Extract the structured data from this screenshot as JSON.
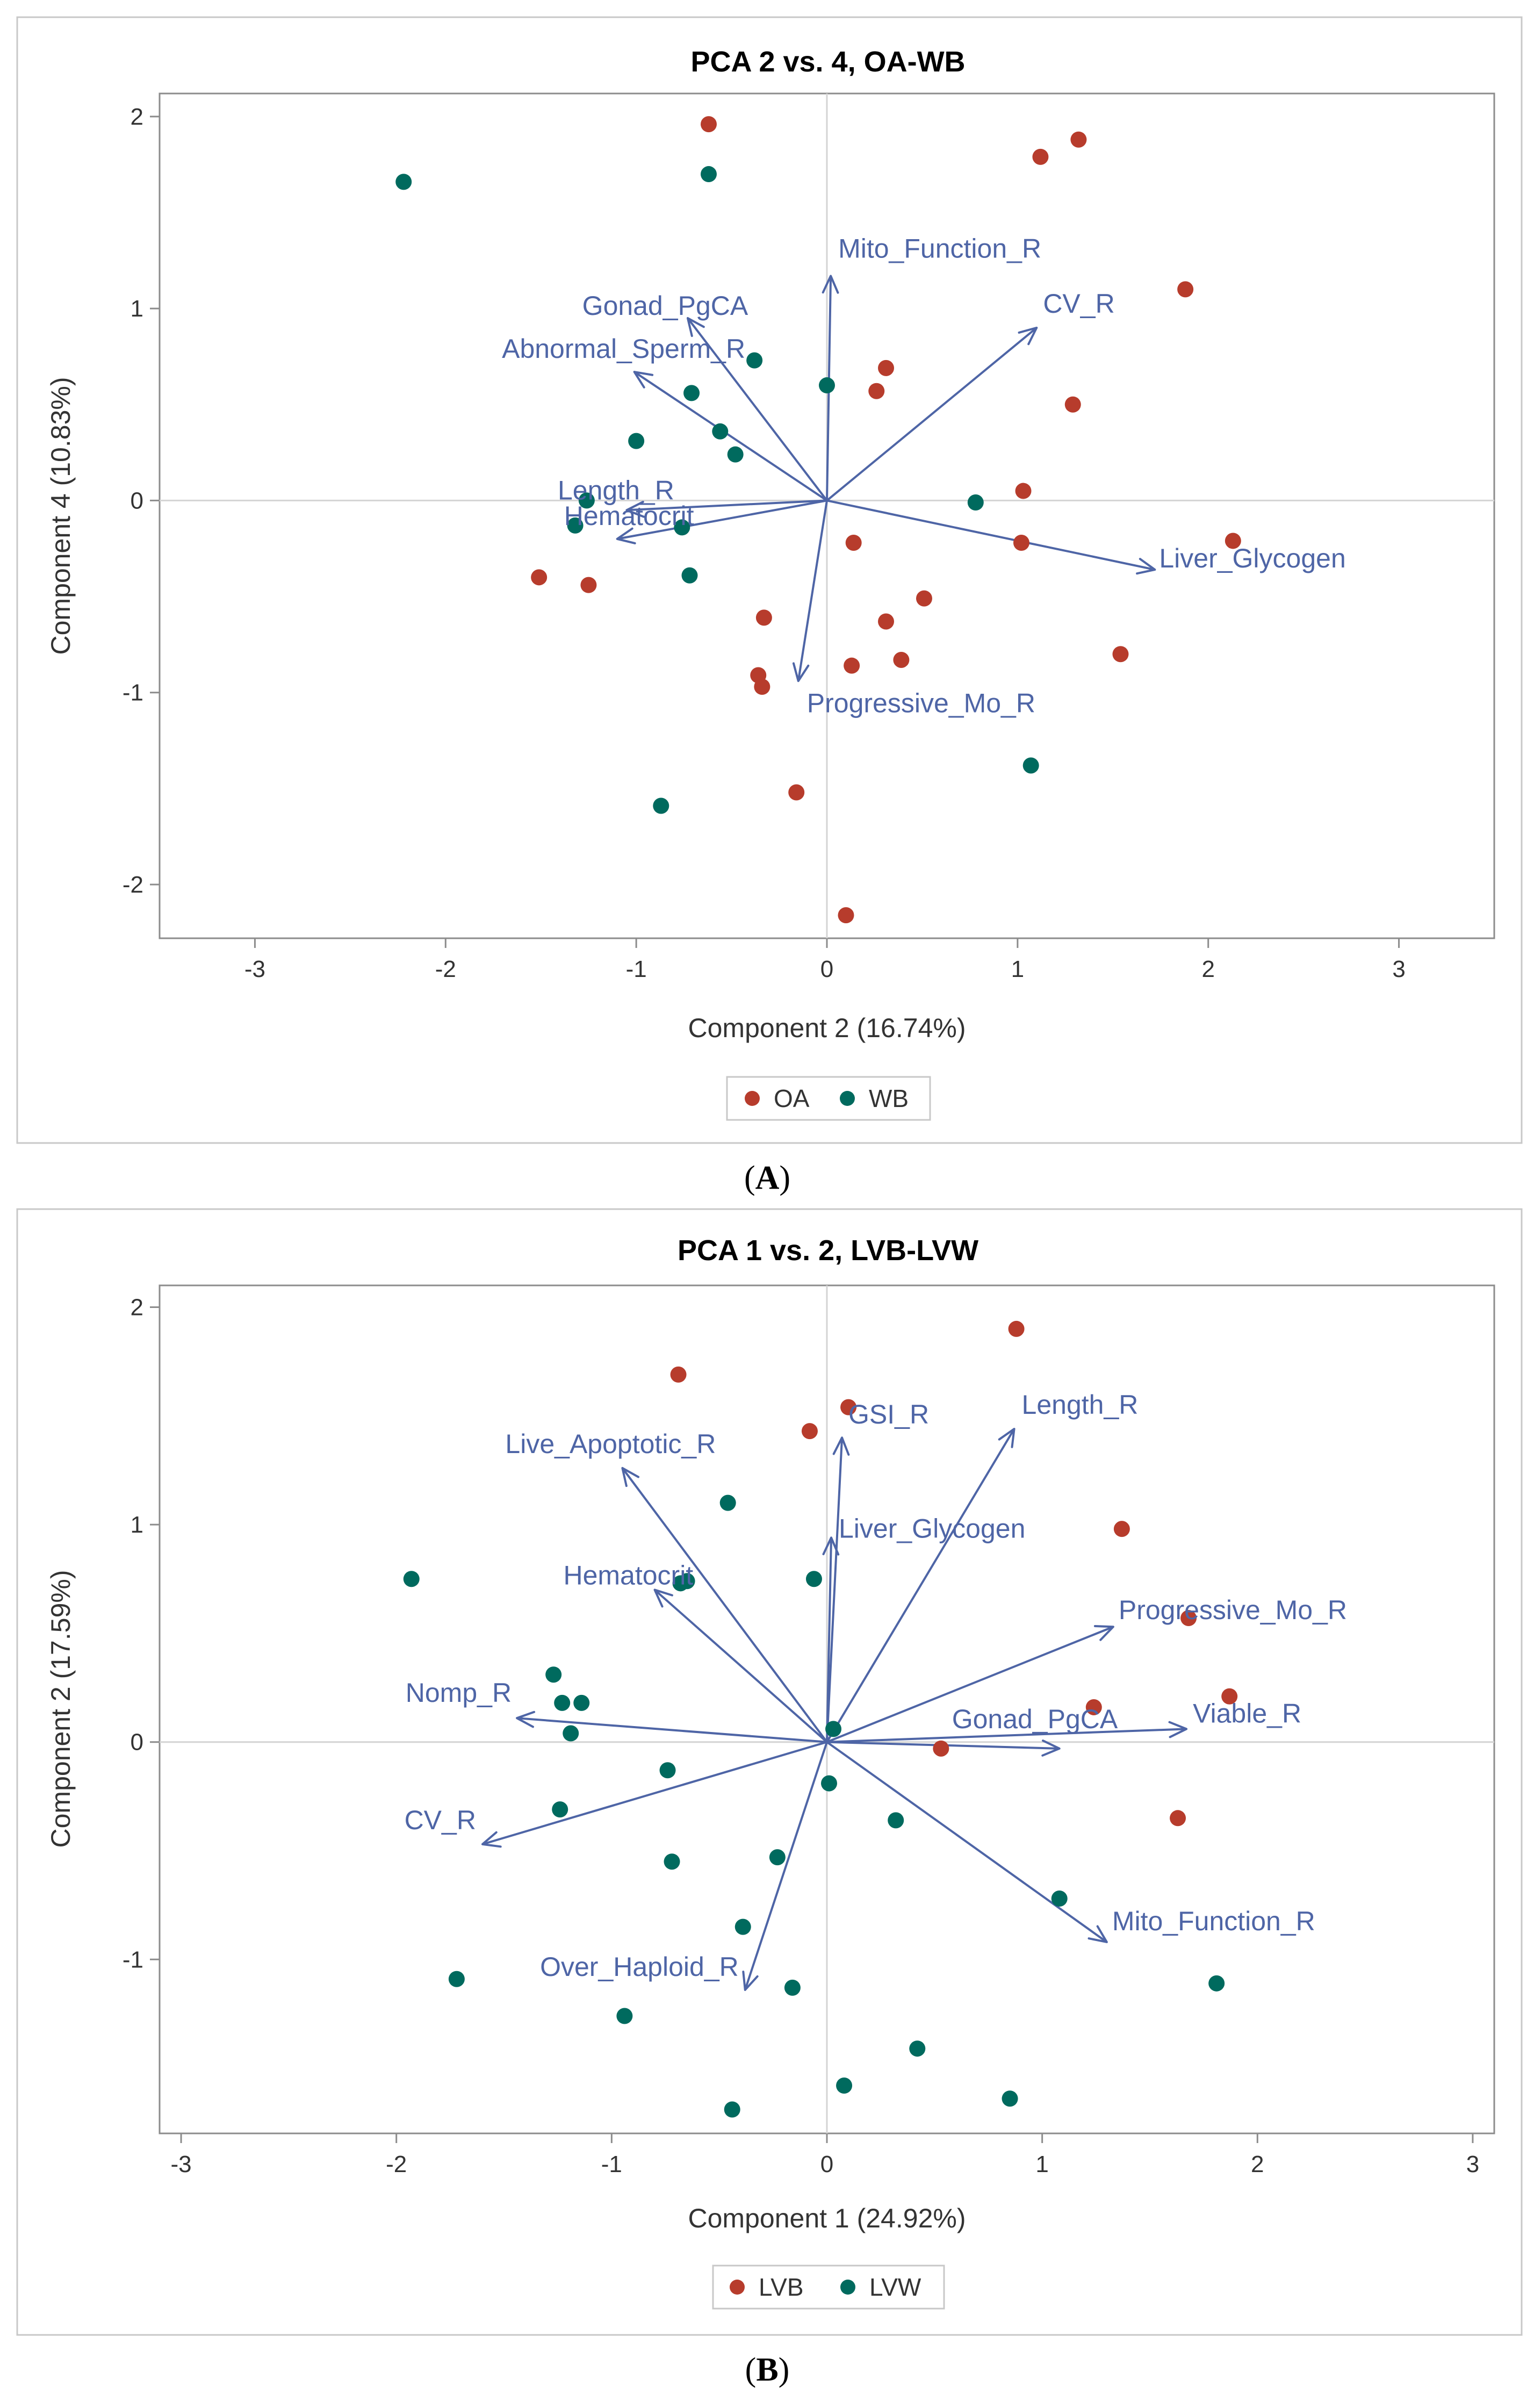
{
  "colors": {
    "red": "#b73c2c",
    "teal": "#006a5e",
    "vector": "#4e65a6"
  },
  "chart_data": [
    {
      "type": "scatter",
      "title": "PCA 2 vs. 4, OA-WB",
      "xlabel": "Component 2 (16.74%)",
      "ylabel": "Component 4 (10.83%)",
      "xlim": [
        -3.5,
        3.5
      ],
      "ylim": [
        -2.28,
        2.12
      ],
      "xticks": [
        -3,
        -2,
        -1,
        0,
        1,
        2,
        3
      ],
      "yticks": [
        -2,
        -1,
        0,
        1,
        2
      ],
      "caption": "A",
      "series": [
        {
          "name": "OA",
          "color": "#b73c2c",
          "points": [
            [
              -0.62,
              1.96
            ],
            [
              1.12,
              1.79
            ],
            [
              1.32,
              1.88
            ],
            [
              1.88,
              1.1
            ],
            [
              0.31,
              0.69
            ],
            [
              0.26,
              0.57
            ],
            [
              1.29,
              0.5
            ],
            [
              1.03,
              0.05
            ],
            [
              1.02,
              -0.22
            ],
            [
              2.13,
              -0.21
            ],
            [
              0.14,
              -0.22
            ],
            [
              -1.51,
              -0.4
            ],
            [
              -1.25,
              -0.44
            ],
            [
              0.51,
              -0.51
            ],
            [
              0.31,
              -0.63
            ],
            [
              -0.33,
              -0.61
            ],
            [
              1.54,
              -0.8
            ],
            [
              0.39,
              -0.83
            ],
            [
              0.13,
              -0.86
            ],
            [
              -0.36,
              -0.91
            ],
            [
              -0.34,
              -0.97
            ],
            [
              -0.16,
              -1.52
            ],
            [
              0.1,
              -2.16
            ]
          ]
        },
        {
          "name": "WB",
          "color": "#006a5e",
          "points": [
            [
              -2.22,
              1.66
            ],
            [
              -0.62,
              1.7
            ],
            [
              -0.38,
              0.73
            ],
            [
              0.0,
              0.6
            ],
            [
              -0.71,
              0.56
            ],
            [
              -0.56,
              0.36
            ],
            [
              -1.0,
              0.31
            ],
            [
              -0.48,
              0.24
            ],
            [
              -1.26,
              0.0
            ],
            [
              0.78,
              -0.01
            ],
            [
              -1.32,
              -0.13
            ],
            [
              -0.76,
              -0.14
            ],
            [
              -0.72,
              -0.39
            ],
            [
              1.07,
              -1.38
            ],
            [
              -0.87,
              -1.59
            ]
          ]
        }
      ],
      "vectors": [
        {
          "label": "Mito_Function_R",
          "end": [
            0.02,
            1.17
          ]
        },
        {
          "label": "CV_R",
          "end": [
            1.1,
            0.9
          ]
        },
        {
          "label": "Gonad_PgCA",
          "end": [
            -0.73,
            0.95
          ]
        },
        {
          "label": "Abnormal_Sperm_R",
          "end": [
            -1.01,
            0.67
          ]
        },
        {
          "label": "Length_R",
          "end": [
            -1.05,
            -0.05
          ]
        },
        {
          "label": "Hematocrit",
          "end": [
            -1.1,
            -0.2
          ]
        },
        {
          "label": "Liver_Glycogen",
          "end": [
            1.72,
            -0.36
          ]
        },
        {
          "label": "Progressive_Mo_R",
          "end": [
            -0.15,
            -0.94
          ]
        }
      ],
      "legend": [
        "OA",
        "WB"
      ]
    },
    {
      "type": "scatter",
      "title": "PCA 1 vs. 2, LVB-LVW",
      "xlabel": "Component 1 (24.92%)",
      "ylabel": "Component 2 (17.59%)",
      "xlim": [
        -3.1,
        3.1
      ],
      "ylim": [
        -1.8,
        2.1
      ],
      "xticks": [
        -3,
        -2,
        -1,
        0,
        1,
        2,
        3
      ],
      "yticks": [
        -1,
        0,
        1,
        2
      ],
      "caption": "B",
      "series": [
        {
          "name": "LVB",
          "color": "#b73c2c",
          "points": [
            [
              0.88,
              1.9
            ],
            [
              -0.69,
              1.69
            ],
            [
              0.1,
              1.54
            ],
            [
              -0.08,
              1.43
            ],
            [
              1.37,
              0.98
            ],
            [
              1.68,
              0.57
            ],
            [
              1.24,
              0.16
            ],
            [
              1.87,
              0.21
            ],
            [
              0.53,
              -0.03
            ],
            [
              1.63,
              -0.35
            ]
          ]
        },
        {
          "name": "LVW",
          "color": "#006a5e",
          "points": [
            [
              -0.46,
              1.1
            ],
            [
              -1.93,
              0.75
            ],
            [
              -0.65,
              0.74
            ],
            [
              -0.68,
              0.73
            ],
            [
              -0.06,
              0.75
            ],
            [
              -1.27,
              0.31
            ],
            [
              -1.23,
              0.18
            ],
            [
              -1.14,
              0.18
            ],
            [
              -1.19,
              0.04
            ],
            [
              0.03,
              0.06
            ],
            [
              -0.74,
              -0.13
            ],
            [
              0.01,
              -0.19
            ],
            [
              0.32,
              -0.36
            ],
            [
              -1.24,
              -0.31
            ],
            [
              -0.72,
              -0.55
            ],
            [
              -0.23,
              -0.53
            ],
            [
              1.08,
              -0.72
            ],
            [
              -0.39,
              -0.85
            ],
            [
              -1.72,
              -1.09
            ],
            [
              -0.16,
              -1.13
            ],
            [
              1.81,
              -1.11
            ],
            [
              -0.94,
              -1.26
            ],
            [
              0.42,
              -1.41
            ],
            [
              0.08,
              -1.58
            ],
            [
              0.85,
              -1.64
            ],
            [
              -0.44,
              -1.69
            ]
          ]
        }
      ],
      "vectors": [
        {
          "label": "GSI_R",
          "end": [
            0.07,
            1.4
          ]
        },
        {
          "label": "Length_R",
          "end": [
            0.87,
            1.44
          ]
        },
        {
          "label": "Live_Apoptotic_R",
          "end": [
            -0.95,
            1.26
          ]
        },
        {
          "label": "Liver_Glycogen",
          "end": [
            0.02,
            0.94
          ]
        },
        {
          "label": "Hematocrit",
          "end": [
            -0.8,
            0.7
          ]
        },
        {
          "label": "Progressive_Mo_R",
          "end": [
            1.33,
            0.53
          ]
        },
        {
          "label": "Nomp_R",
          "end": [
            -1.44,
            0.11
          ]
        },
        {
          "label": "Gonad_PgCA",
          "end": [
            1.08,
            -0.03
          ]
        },
        {
          "label": "Viable_R",
          "end": [
            1.67,
            0.06
          ]
        },
        {
          "label": "CV_R",
          "end": [
            -1.6,
            -0.47
          ]
        },
        {
          "label": "Mito_Function_R",
          "end": [
            1.3,
            -0.92
          ]
        },
        {
          "label": "Over_Haploid_R",
          "end": [
            -0.38,
            -1.14
          ]
        }
      ],
      "legend": [
        "LVB",
        "LVW"
      ]
    }
  ]
}
